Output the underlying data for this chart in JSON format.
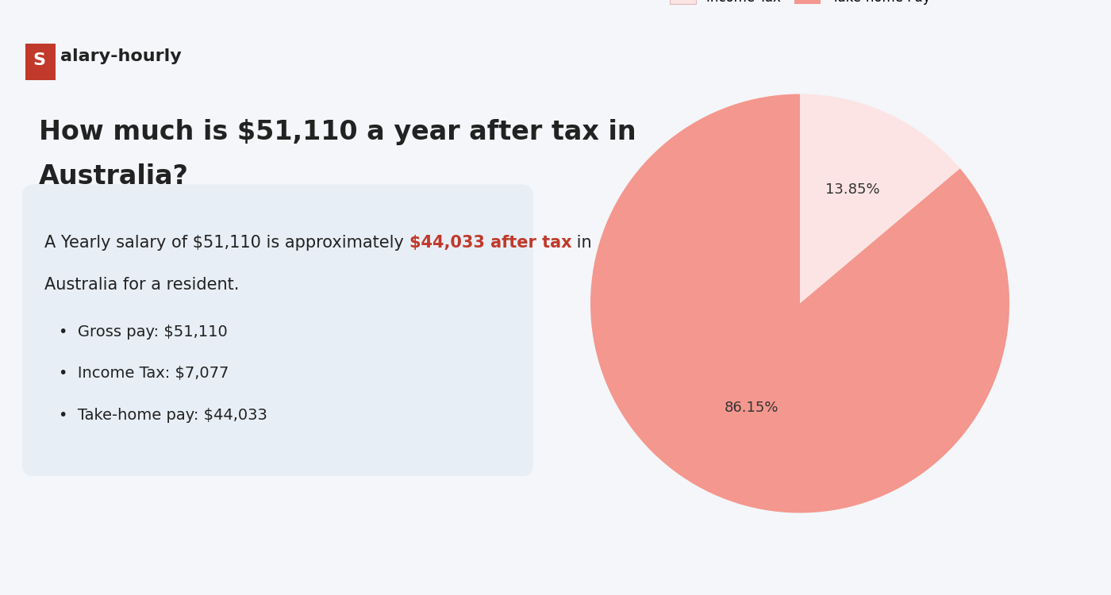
{
  "title_line1": "How much is $51,110 a year after tax in",
  "title_line2": "Australia?",
  "logo_s_bg": "#c0392b",
  "background_color": "#f4f6f9",
  "info_box_color": "#e8eef5",
  "summary_t1": "A Yearly salary of $51,110 is approximately ",
  "summary_t2": "$44,033 after tax",
  "summary_t3": " in",
  "summary_line2": "Australia for a resident.",
  "highlight_color": "#c0392b",
  "bullet_items": [
    "Gross pay: $51,110",
    "Income Tax: $7,077",
    "Take-home pay: $44,033"
  ],
  "pie_values": [
    13.85,
    86.15
  ],
  "pie_labels": [
    "Income Tax",
    "Take-home Pay"
  ],
  "pie_colors": [
    "#fce4e4",
    "#f4978e"
  ],
  "pie_pct_labels": [
    "13.85%",
    "86.15%"
  ],
  "legend_colors": [
    "#fce4e4",
    "#f4978e"
  ],
  "text_color": "#222222",
  "title_fontsize": 24,
  "body_fontsize": 15,
  "bullet_fontsize": 14
}
